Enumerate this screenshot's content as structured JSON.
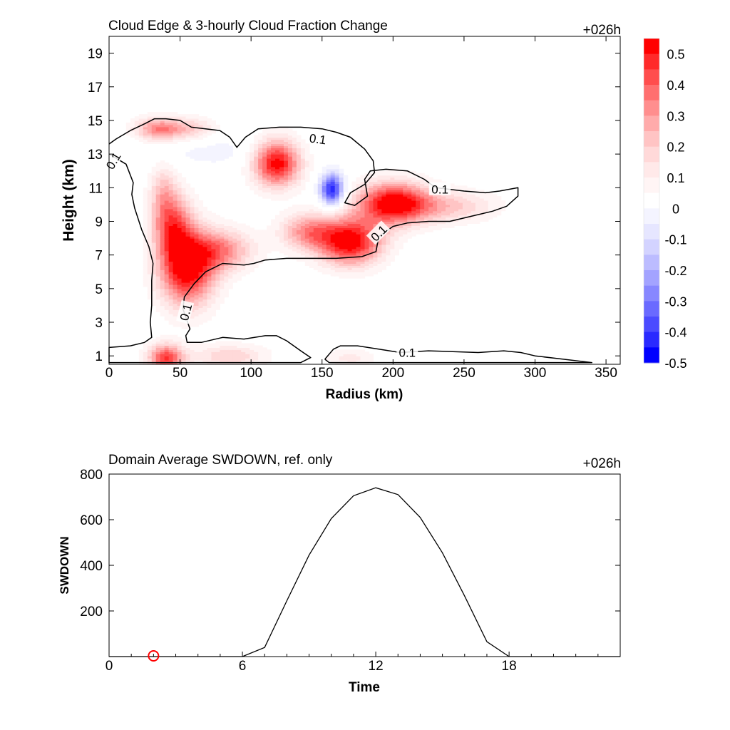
{
  "chart_data": [
    {
      "type": "heatmap",
      "title": "Cloud Edge & 3-hourly Cloud Fraction Change",
      "time_label": "+026h",
      "xlabel": "Radius (km)",
      "ylabel": "Height (km)",
      "xlim": [
        0,
        360
      ],
      "ylim": [
        0.5,
        20
      ],
      "xticks": [
        0,
        50,
        100,
        150,
        200,
        250,
        300,
        350
      ],
      "yticks": [
        1,
        3,
        5,
        7,
        9,
        11,
        13,
        15,
        17,
        19
      ],
      "colorbar": {
        "levels": [
          -0.55,
          -0.5,
          -0.45,
          -0.4,
          -0.35,
          -0.3,
          -0.25,
          -0.2,
          -0.15,
          -0.1,
          -0.05,
          0.05,
          0.1,
          0.15,
          0.2,
          0.25,
          0.3,
          0.35,
          0.4,
          0.45,
          0.5,
          0.55
        ],
        "tick_labels": [
          "0.5",
          "0.4",
          "0.3",
          "0.2",
          "0.1",
          "0",
          "-0.1",
          "-0.2",
          "-0.3",
          "-0.4",
          "-0.5"
        ],
        "colors": [
          "#ff0000",
          "#ff2a2a",
          "#ff4d4d",
          "#ff6f6f",
          "#ff8e8e",
          "#ffabab",
          "#ffc4c4",
          "#ffd9d9",
          "#ffe9e9",
          "#fff5f5",
          "#ffffff",
          "#f4f4ff",
          "#e6e6ff",
          "#d3d3ff",
          "#bcbcff",
          "#a3a3ff",
          "#8787ff",
          "#6a6aff",
          "#4b4bff",
          "#2a2aff",
          "#0000ff"
        ]
      },
      "blobs": [
        {
          "r": 55,
          "z": 6.2,
          "sr": 14,
          "sz": 1.6,
          "v": 0.55
        },
        {
          "r": 45,
          "z": 8.8,
          "sr": 10,
          "sz": 1.4,
          "v": 0.35
        },
        {
          "r": 38,
          "z": 10.8,
          "sr": 7,
          "sz": 1.3,
          "v": 0.18
        },
        {
          "r": 80,
          "z": 7.3,
          "sr": 16,
          "sz": 0.9,
          "v": 0.3
        },
        {
          "r": 118,
          "z": 12.5,
          "sr": 12,
          "sz": 1.0,
          "v": 0.55
        },
        {
          "r": 170,
          "z": 7.8,
          "sr": 16,
          "sz": 1.0,
          "v": 0.55
        },
        {
          "r": 140,
          "z": 8.4,
          "sr": 14,
          "sz": 0.8,
          "v": 0.3
        },
        {
          "r": 200,
          "z": 10.1,
          "sr": 18,
          "sz": 0.9,
          "v": 0.55
        },
        {
          "r": 240,
          "z": 9.9,
          "sr": 25,
          "sz": 0.7,
          "v": 0.2
        },
        {
          "r": 35,
          "z": 14.5,
          "sr": 12,
          "sz": 0.5,
          "v": 0.35
        },
        {
          "r": 60,
          "z": 14.5,
          "sr": 12,
          "sz": 0.5,
          "v": 0.18
        },
        {
          "r": 40,
          "z": 0.9,
          "sr": 9,
          "sz": 0.6,
          "v": 0.45
        },
        {
          "r": 85,
          "z": 1.0,
          "sr": 18,
          "sz": 0.5,
          "v": 0.2
        },
        {
          "r": 170,
          "z": 0.9,
          "sr": 12,
          "sz": 0.4,
          "v": 0.12
        },
        {
          "r": 157,
          "z": 10.9,
          "sr": 6,
          "sz": 0.7,
          "v": -0.5
        },
        {
          "r": 75,
          "z": 13.2,
          "sr": 35,
          "sz": 0.8,
          "v": -0.07
        },
        {
          "r": 310,
          "z": 7.5,
          "sr": 40,
          "sz": 2.0,
          "v": -0.02
        }
      ],
      "contour_level": "0.1",
      "contours": [
        [
          [
            0,
            13.6
          ],
          [
            5,
            13.9
          ],
          [
            15,
            14.4
          ],
          [
            25,
            14.8
          ],
          [
            32,
            15.1
          ],
          [
            40,
            15.1
          ],
          [
            50,
            15.0
          ],
          [
            58,
            14.6
          ],
          [
            68,
            14.5
          ],
          [
            78,
            14.4
          ],
          [
            85,
            14.0
          ],
          [
            90,
            13.4
          ],
          [
            96,
            14.0
          ],
          [
            105,
            14.5
          ],
          [
            120,
            14.6
          ],
          [
            135,
            14.6
          ],
          [
            150,
            14.5
          ],
          [
            160,
            14.3
          ],
          [
            170,
            14.0
          ],
          [
            180,
            13.3
          ],
          [
            186,
            12.6
          ],
          [
            187,
            11.9
          ],
          [
            180,
            11.2
          ],
          [
            170,
            10.7
          ],
          [
            166,
            10.1
          ],
          [
            173,
            9.95
          ],
          [
            182,
            10.5
          ],
          [
            180,
            11.5
          ],
          [
            184,
            12.0
          ],
          [
            195,
            12.1
          ],
          [
            210,
            12.0
          ],
          [
            222,
            11.5
          ],
          [
            230,
            11.0
          ],
          [
            250,
            10.8
          ],
          [
            265,
            10.7
          ],
          [
            275,
            10.8
          ],
          [
            288,
            11.0
          ],
          [
            288,
            10.5
          ],
          [
            280,
            9.9
          ],
          [
            270,
            9.6
          ],
          [
            255,
            9.3
          ],
          [
            240,
            9.0
          ],
          [
            225,
            9.0
          ],
          [
            210,
            8.9
          ],
          [
            200,
            8.7
          ],
          [
            190,
            8.1
          ],
          [
            188,
            7.2
          ],
          [
            178,
            6.9
          ],
          [
            160,
            6.8
          ],
          [
            145,
            6.8
          ],
          [
            125,
            6.8
          ],
          [
            110,
            6.7
          ],
          [
            102,
            6.5
          ],
          [
            95,
            6.4
          ],
          [
            80,
            6.5
          ],
          [
            68,
            6.0
          ],
          [
            60,
            5.3
          ],
          [
            53,
            4.5
          ],
          [
            52,
            3.8
          ],
          [
            54,
            3.3
          ],
          [
            57,
            2.6
          ],
          [
            54,
            2.2
          ],
          [
            55,
            1.8
          ],
          [
            65,
            1.8
          ],
          [
            80,
            2.1
          ],
          [
            95,
            2.0
          ],
          [
            110,
            2.2
          ],
          [
            118,
            2.2
          ],
          [
            125,
            1.9
          ],
          [
            135,
            1.3
          ],
          [
            142,
            0.9
          ],
          [
            135,
            0.6
          ],
          [
            120,
            0.6
          ],
          [
            100,
            0.6
          ],
          [
            80,
            0.6
          ],
          [
            60,
            0.6
          ],
          [
            40,
            0.6
          ],
          [
            20,
            0.6
          ],
          [
            0,
            0.6
          ],
          [
            0,
            1.5
          ],
          [
            15,
            1.6
          ],
          [
            25,
            1.8
          ],
          [
            30,
            2.1
          ],
          [
            29,
            3.0
          ],
          [
            30,
            4.0
          ],
          [
            30,
            5.5
          ],
          [
            31,
            6.5
          ],
          [
            28,
            7.5
          ],
          [
            23,
            8.5
          ],
          [
            18,
            9.8
          ],
          [
            16,
            10.6
          ],
          [
            17,
            11.3
          ],
          [
            12,
            12.4
          ],
          [
            4,
            12.8
          ],
          [
            0,
            13.0
          ]
        ],
        [
          [
            152,
            0.8
          ],
          [
            158,
            1.4
          ],
          [
            163,
            1.6
          ],
          [
            175,
            1.6
          ],
          [
            190,
            1.4
          ],
          [
            205,
            1.2
          ],
          [
            225,
            1.3
          ],
          [
            260,
            1.2
          ],
          [
            278,
            1.3
          ],
          [
            290,
            1.2
          ],
          [
            300,
            1.0
          ],
          [
            320,
            0.8
          ],
          [
            340,
            0.6
          ],
          [
            220,
            0.6
          ],
          [
            155,
            0.6
          ],
          [
            152,
            0.8
          ]
        ]
      ],
      "contour_labels": [
        {
          "x": 147,
          "y": 13.9,
          "rot": 8,
          "text": "0.1"
        },
        {
          "x": 233,
          "y": 10.9,
          "rot": 0,
          "text": "0.1"
        },
        {
          "x": 190,
          "y": 8.3,
          "rot": -45,
          "text": "0.1"
        },
        {
          "x": 54,
          "y": 3.6,
          "rot": -75,
          "text": "0.1"
        },
        {
          "x": 3,
          "y": 12.6,
          "rot": -60,
          "text": "0.1"
        },
        {
          "x": 210,
          "y": 1.2,
          "rot": 0,
          "text": "0.1"
        }
      ]
    },
    {
      "type": "line",
      "title": "Domain Average SWDOWN, ref. only",
      "time_label": "+026h",
      "xlabel": "Time",
      "ylabel": "SWDOWN",
      "xlim": [
        0,
        23
      ],
      "ylim": [
        0,
        800
      ],
      "xticks": [
        0,
        6,
        12,
        18
      ],
      "yticks": [
        200,
        400,
        600,
        800
      ],
      "series": [
        {
          "x": [
            0,
            1,
            2,
            3,
            4,
            5,
            6,
            7,
            8,
            9,
            10,
            11,
            12,
            13,
            14,
            15,
            16,
            17,
            18,
            19,
            20,
            21,
            22,
            23
          ],
          "values": [
            0,
            0,
            0,
            0,
            0,
            0,
            0,
            40,
            245,
            445,
            605,
            705,
            740,
            710,
            610,
            455,
            265,
            65,
            0,
            0,
            0,
            0,
            0,
            0
          ]
        }
      ],
      "marker": {
        "x": 2,
        "y": 0,
        "color": "#ff0000"
      }
    }
  ]
}
